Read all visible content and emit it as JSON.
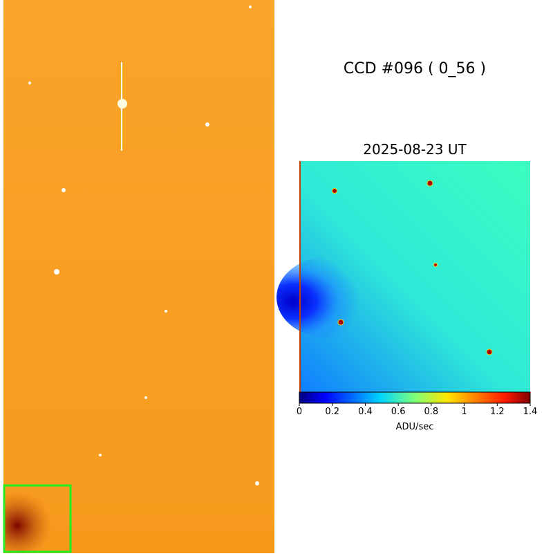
{
  "header": {
    "title": "CCD #096 ( 0_56 )",
    "subtitle": "2025-08-23 UT"
  },
  "colorbar": {
    "lim": [
      0,
      1.4
    ],
    "ticks": [
      0,
      0.2,
      0.4,
      0.6,
      0.8,
      1,
      1.2,
      1.4
    ],
    "label": "ADU/sec"
  }
}
